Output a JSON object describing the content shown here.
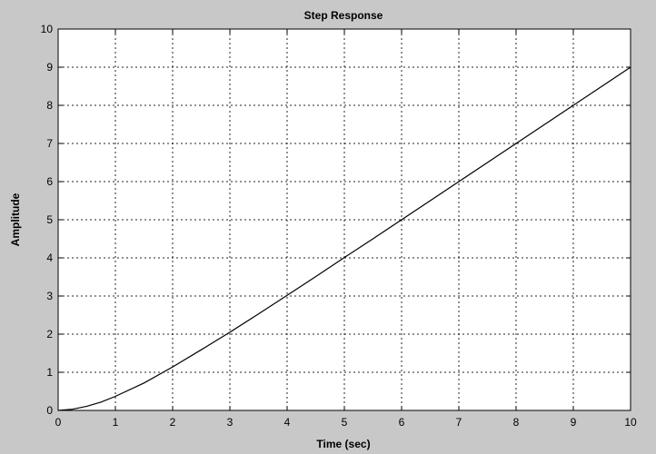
{
  "chart_data": {
    "type": "line",
    "title": "Step Response",
    "xlabel": "Time (sec)",
    "ylabel": "Amplitude",
    "xlim": [
      0,
      10
    ],
    "ylim": [
      0,
      10
    ],
    "xticks": [
      "0",
      "1",
      "2",
      "3",
      "4",
      "5",
      "6",
      "7",
      "8",
      "9",
      "10"
    ],
    "yticks": [
      "0",
      "1",
      "2",
      "3",
      "4",
      "5",
      "6",
      "7",
      "8",
      "9",
      "10"
    ],
    "grid": true,
    "series": [
      {
        "color": "#000000",
        "x": [
          0,
          0.25,
          0.5,
          0.75,
          1,
          1.5,
          2,
          2.5,
          3,
          3.5,
          4,
          4.5,
          5,
          5.5,
          6,
          6.5,
          7,
          7.5,
          8,
          8.5,
          9,
          9.5,
          10
        ],
        "y": [
          0,
          0.03,
          0.11,
          0.22,
          0.37,
          0.72,
          1.14,
          1.59,
          2.05,
          2.53,
          3.02,
          3.51,
          4.01,
          4.5,
          5.0,
          5.5,
          6.0,
          6.5,
          7.0,
          7.5,
          8.0,
          8.5,
          9.0
        ]
      }
    ]
  }
}
